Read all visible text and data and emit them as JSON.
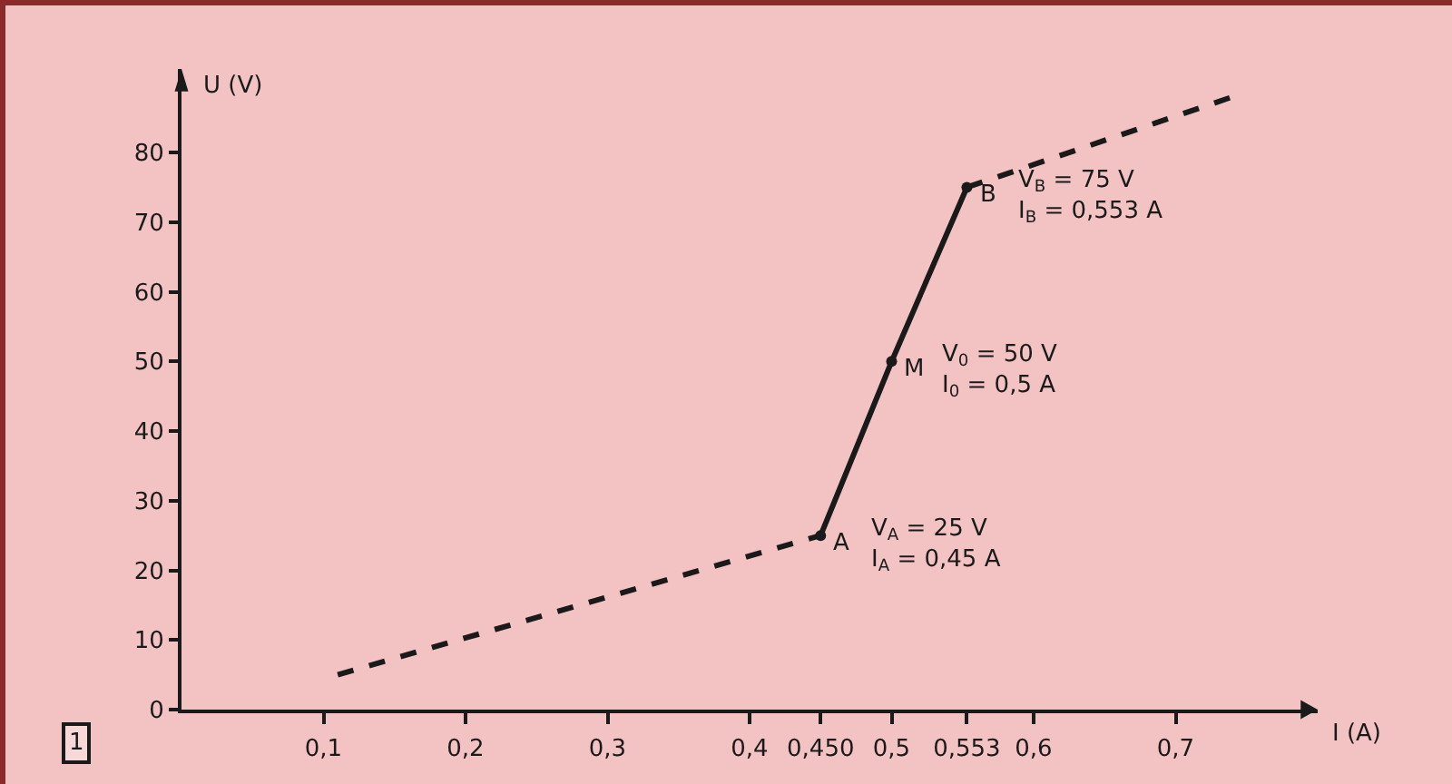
{
  "chart_data": {
    "type": "line",
    "xlabel": "I (A)",
    "ylabel": "U (V)",
    "xlim": [
      0,
      0.8
    ],
    "ylim": [
      0,
      92
    ],
    "xticks": [
      {
        "value": 0.1,
        "label": "0,1"
      },
      {
        "value": 0.2,
        "label": "0,2"
      },
      {
        "value": 0.3,
        "label": "0,3"
      },
      {
        "value": 0.4,
        "label": "0,4"
      },
      {
        "value": 0.45,
        "label": "0,450"
      },
      {
        "value": 0.5,
        "label": "0,5"
      },
      {
        "value": 0.553,
        "label": "0,553"
      },
      {
        "value": 0.6,
        "label": "0,6"
      },
      {
        "value": 0.7,
        "label": "0,7"
      }
    ],
    "yticks": [
      0,
      10,
      20,
      30,
      40,
      50,
      60,
      70,
      80
    ],
    "grid": false,
    "series": [
      {
        "color": "#1a1a1a",
        "x": [
          0.11,
          0.45
        ],
        "values": [
          5,
          25
        ],
        "line_style": "dashed"
      },
      {
        "color": "#1a1a1a",
        "x": [
          0.45,
          0.5,
          0.553
        ],
        "values": [
          25,
          50,
          75
        ],
        "line_style": "solid",
        "marker": "circle"
      },
      {
        "color": "#1a1a1a",
        "x": [
          0.553,
          0.74
        ],
        "values": [
          75,
          88
        ],
        "line_style": "dashed"
      }
    ],
    "annotations": [
      {
        "text": "A",
        "x": 0.45,
        "y": 25
      },
      {
        "text": "V$_{A}$ = 25 V\nI$_{A}$ = 0,45 A",
        "x": 0.45,
        "y": 25
      },
      {
        "text": "M",
        "x": 0.5,
        "y": 50
      },
      {
        "text": "V$_{0}$ = 50 V\nI$_{0}$ = 0,5 A",
        "x": 0.5,
        "y": 50
      },
      {
        "text": "B",
        "x": 0.553,
        "y": 75
      },
      {
        "text": "V$_{B}$ = 75 V\nI$_{B}$ = 0,553 A",
        "x": 0.553,
        "y": 75
      },
      "1"
    ]
  }
}
